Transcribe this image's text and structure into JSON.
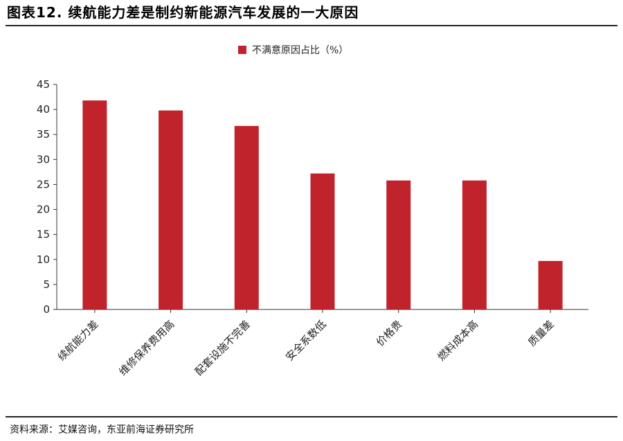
{
  "header": {
    "title": "图表12. 续航能力差是制约新能源汽车发展的一大原因"
  },
  "footer": {
    "source": "资料来源：艾媒咨询，东亚前海证券研究所"
  },
  "chart_data": {
    "type": "bar",
    "categories": [
      "续航能力差",
      "维修保养费用高",
      "配套设施不完善",
      "安全系数低",
      "价格贵",
      "燃料成本高",
      "质量差"
    ],
    "series": [
      {
        "name": "不满意原因占比（%）",
        "values": [
          41.8,
          39.8,
          36.7,
          27.2,
          25.8,
          25.8,
          9.7
        ],
        "color": "#c0232c"
      }
    ],
    "yticks": [
      "0",
      "5",
      "10",
      "15",
      "20",
      "25",
      "30",
      "35",
      "40",
      "45"
    ],
    "ylim": [
      0,
      45
    ],
    "legend_position": "top-center",
    "grid": false
  }
}
